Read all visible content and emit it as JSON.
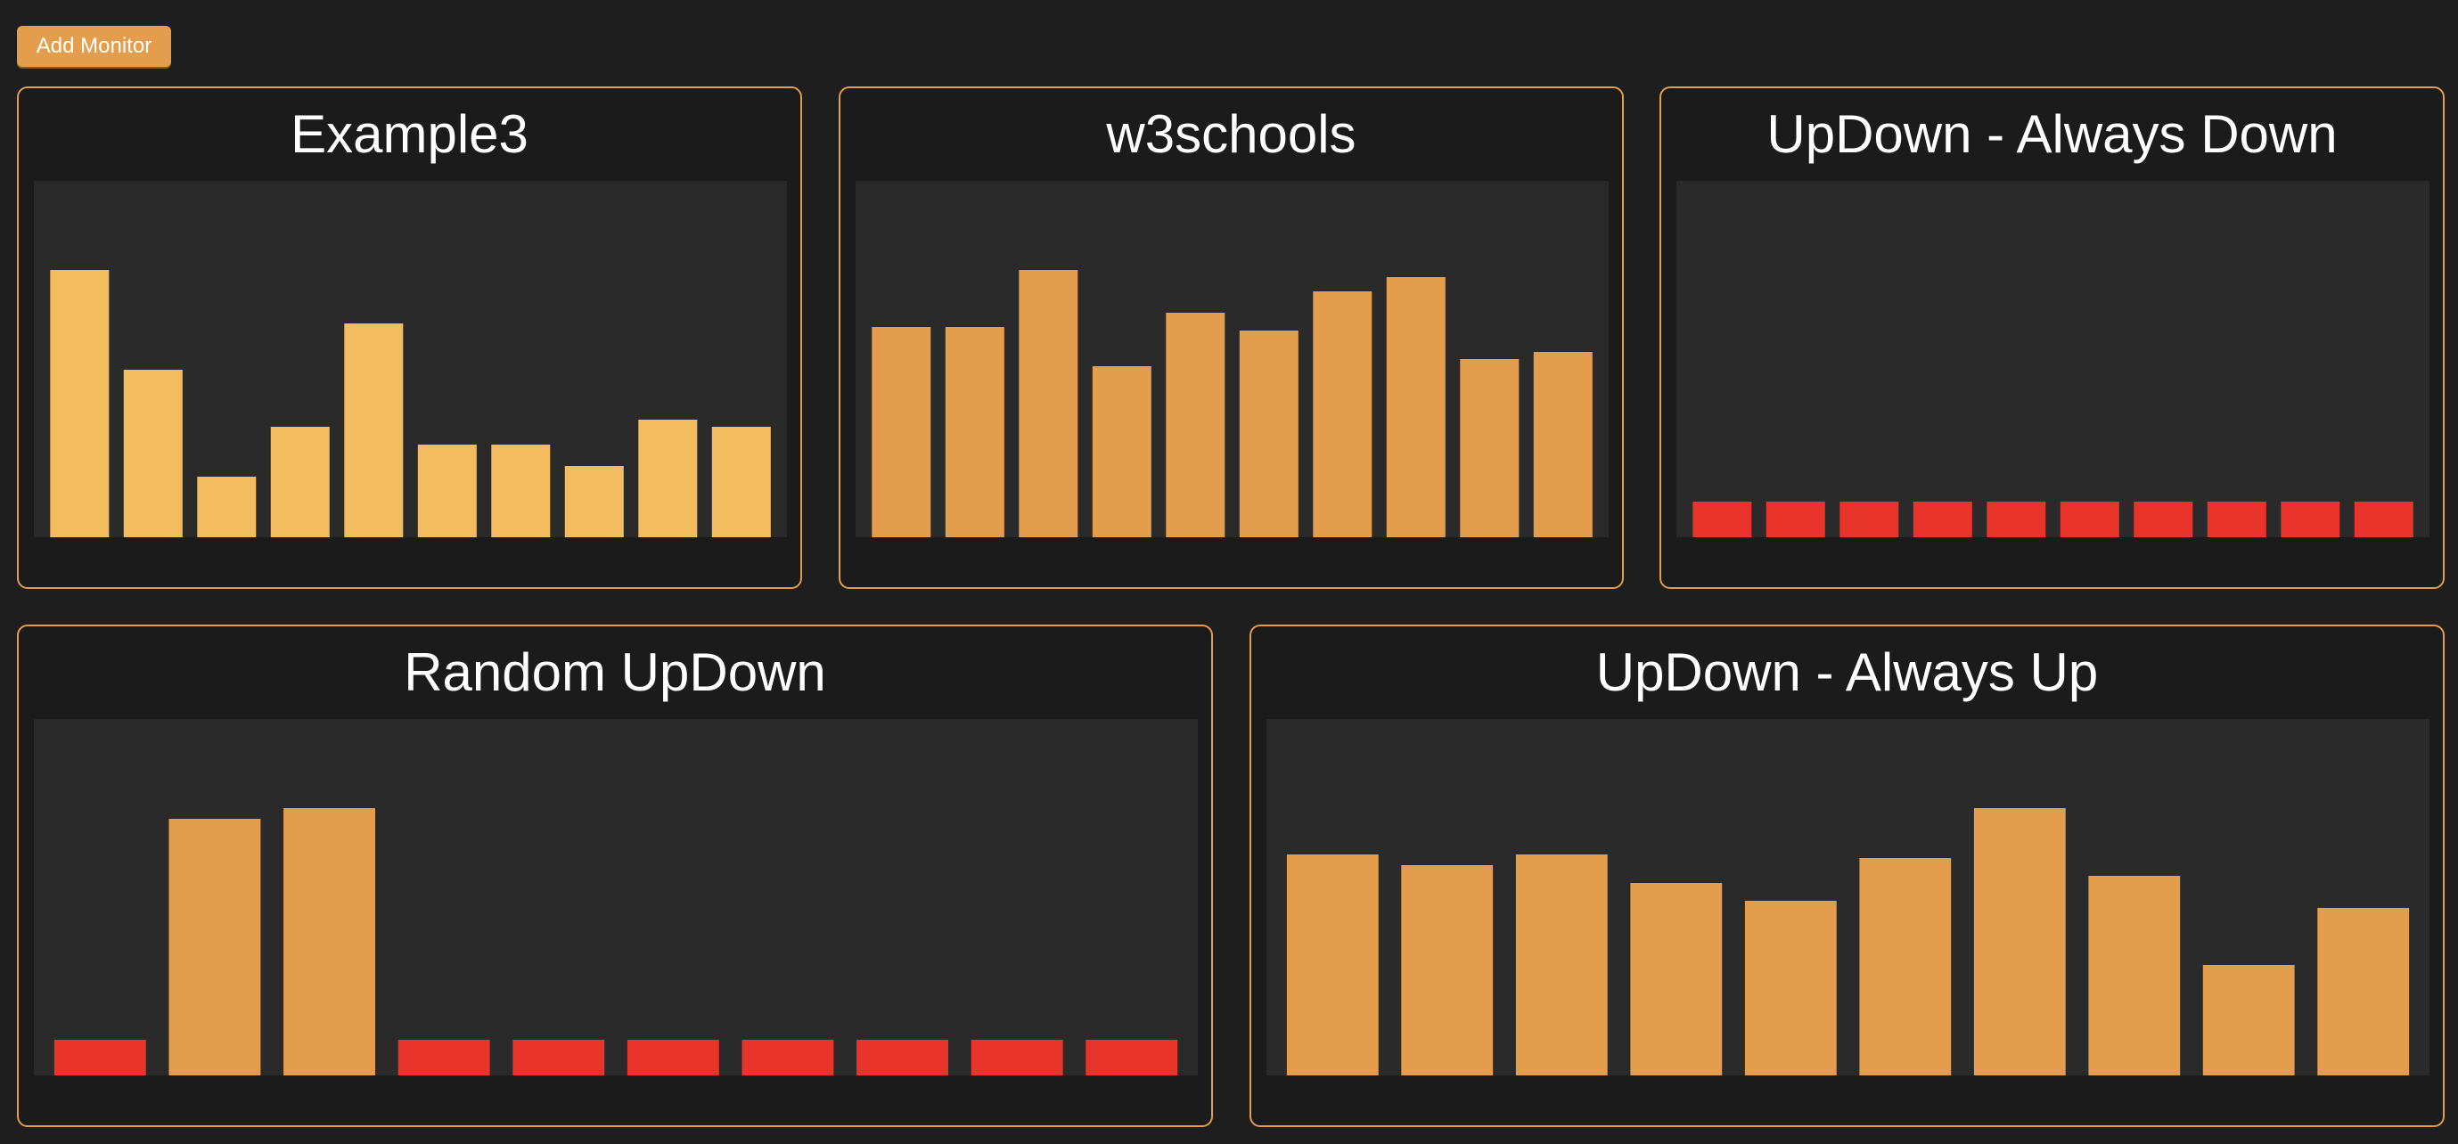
{
  "toolbar": {
    "add_monitor_label": "Add Monitor"
  },
  "colors": {
    "accent": "#e49d4d",
    "up_bar_light": "#f3bd5f",
    "up_bar": "#e49d4d",
    "down_bar": "#e8342a",
    "background": "#1e1e1e",
    "chart_background": "#2a2a2a"
  },
  "monitors": [
    {
      "title": "Example3"
    },
    {
      "title": "w3schools"
    },
    {
      "title": "UpDown - Always Down"
    },
    {
      "title": "Random UpDown"
    },
    {
      "title": "UpDown - Always Up"
    }
  ],
  "chart_data": [
    {
      "type": "bar",
      "title": "Example3",
      "values": [
        75,
        47,
        17,
        31,
        60,
        26,
        26,
        20,
        33,
        31
      ],
      "status": [
        "up",
        "up",
        "up",
        "up",
        "up",
        "up",
        "up",
        "up",
        "up",
        "up"
      ],
      "ylim": [
        0,
        100
      ]
    },
    {
      "type": "bar",
      "title": "w3schools",
      "values": [
        59,
        59,
        75,
        48,
        63,
        58,
        69,
        73,
        50,
        52
      ],
      "status": [
        "up",
        "up",
        "up",
        "up",
        "up",
        "up",
        "up",
        "up",
        "up",
        "up"
      ],
      "ylim": [
        0,
        100
      ]
    },
    {
      "type": "bar",
      "title": "UpDown - Always Down",
      "values": [
        10,
        10,
        10,
        10,
        10,
        10,
        10,
        10,
        10,
        10
      ],
      "status": [
        "down",
        "down",
        "down",
        "down",
        "down",
        "down",
        "down",
        "down",
        "down",
        "down"
      ],
      "ylim": [
        0,
        100
      ]
    },
    {
      "type": "bar",
      "title": "Random UpDown",
      "values": [
        10,
        72,
        75,
        10,
        10,
        10,
        10,
        10,
        10,
        10
      ],
      "status": [
        "down",
        "up",
        "up",
        "down",
        "down",
        "down",
        "down",
        "down",
        "down",
        "down"
      ],
      "ylim": [
        0,
        100
      ]
    },
    {
      "type": "bar",
      "title": "UpDown - Always Up",
      "values": [
        62,
        59,
        62,
        54,
        49,
        61,
        75,
        56,
        31,
        47
      ],
      "status": [
        "up",
        "up",
        "up",
        "up",
        "up",
        "up",
        "up",
        "up",
        "up",
        "up"
      ],
      "ylim": [
        0,
        100
      ]
    }
  ]
}
